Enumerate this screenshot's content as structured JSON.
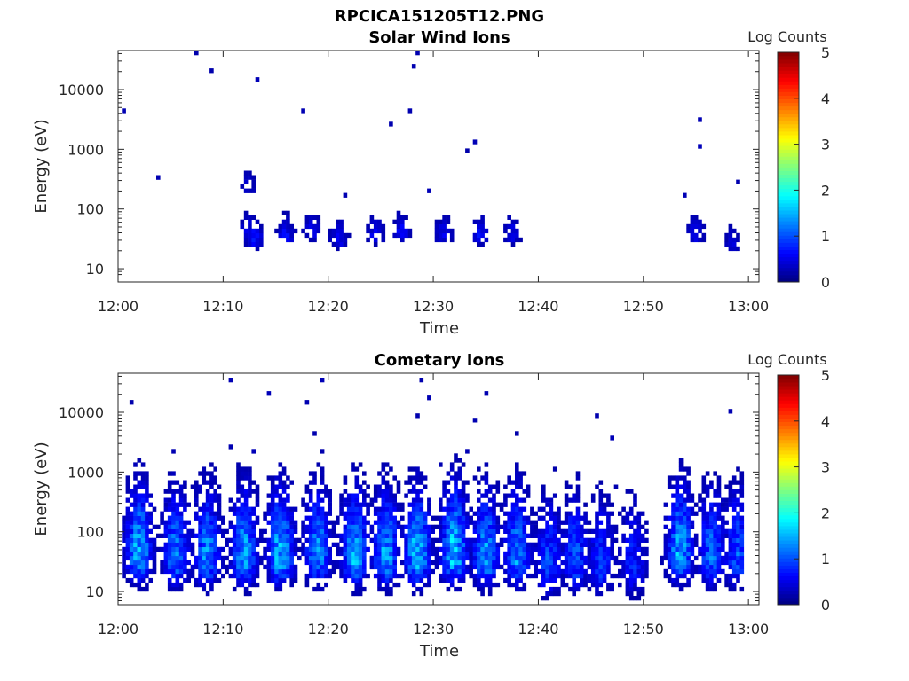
{
  "figure_title": "RPCICA151205T12.PNG",
  "colorbar": {
    "label": "Log Counts",
    "ticks": [
      "0",
      "1",
      "2",
      "3",
      "4",
      "5"
    ],
    "min": 0,
    "max": 5
  },
  "chart_data": [
    {
      "type": "heatmap",
      "title": "Solar Wind Ions",
      "xlabel": "Time",
      "ylabel": "Energy (eV)",
      "xlim": [
        "12:00",
        "13:01"
      ],
      "ylim": [
        6,
        45000
      ],
      "y_scale": "log",
      "x_ticks": [
        "12:00",
        "12:10",
        "12:20",
        "12:30",
        "12:40",
        "12:50",
        "13:00"
      ],
      "y_ticks": [
        "10",
        "100",
        "1000",
        "10000"
      ],
      "value_range": [
        0,
        1.2
      ],
      "bursts": [
        {
          "t": 12.3,
          "e": 220,
          "level": 0.35
        },
        {
          "t": 12.5,
          "e": 40,
          "level": 0.6
        },
        {
          "t": 13.0,
          "e": 30,
          "level": 0.7
        },
        {
          "t": 16.0,
          "e": 35,
          "level": 0.6
        },
        {
          "t": 18.5,
          "e": 40,
          "level": 0.5
        },
        {
          "t": 21.0,
          "e": 30,
          "level": 0.6
        },
        {
          "t": 24.5,
          "e": 35,
          "level": 0.5
        },
        {
          "t": 27.0,
          "e": 40,
          "level": 0.6
        },
        {
          "t": 31.0,
          "e": 35,
          "level": 0.55
        },
        {
          "t": 34.5,
          "e": 35,
          "level": 0.6
        },
        {
          "t": 37.5,
          "e": 35,
          "level": 0.5
        },
        {
          "t": 55.0,
          "e": 35,
          "level": 0.55
        },
        {
          "t": 58.5,
          "e": 25,
          "level": 0.4
        }
      ]
    },
    {
      "type": "heatmap",
      "title": "Cometary Ions",
      "xlabel": "Time",
      "ylabel": "Energy (eV)",
      "xlim": [
        "12:00",
        "13:01"
      ],
      "ylim": [
        6,
        45000
      ],
      "y_scale": "log",
      "x_ticks": [
        "12:00",
        "12:10",
        "12:20",
        "12:30",
        "12:40",
        "12:50",
        "13:00"
      ],
      "y_ticks": [
        "10",
        "100",
        "1000",
        "10000"
      ],
      "value_range": [
        0,
        2.2
      ],
      "bursts": [
        {
          "t": 2.0,
          "e": 40,
          "level": 1.6
        },
        {
          "t": 5.5,
          "e": 35,
          "level": 1.3
        },
        {
          "t": 8.5,
          "e": 35,
          "level": 1.4
        },
        {
          "t": 12.0,
          "e": 35,
          "level": 1.5
        },
        {
          "t": 15.5,
          "e": 35,
          "level": 1.7
        },
        {
          "t": 19.0,
          "e": 35,
          "level": 1.4
        },
        {
          "t": 22.5,
          "e": 35,
          "level": 1.6
        },
        {
          "t": 25.5,
          "e": 35,
          "level": 1.5
        },
        {
          "t": 28.5,
          "e": 35,
          "level": 1.7
        },
        {
          "t": 32.0,
          "e": 40,
          "level": 1.8
        },
        {
          "t": 35.0,
          "e": 35,
          "level": 1.5
        },
        {
          "t": 38.0,
          "e": 35,
          "level": 1.4
        },
        {
          "t": 41.0,
          "e": 25,
          "level": 1.0
        },
        {
          "t": 43.5,
          "e": 30,
          "level": 1.1
        },
        {
          "t": 46.0,
          "e": 25,
          "level": 0.9
        },
        {
          "t": 49.0,
          "e": 25,
          "level": 0.8
        },
        {
          "t": 53.5,
          "e": 40,
          "level": 1.6
        },
        {
          "t": 56.5,
          "e": 35,
          "level": 1.2
        },
        {
          "t": 59.0,
          "e": 35,
          "level": 1.1
        }
      ]
    }
  ]
}
